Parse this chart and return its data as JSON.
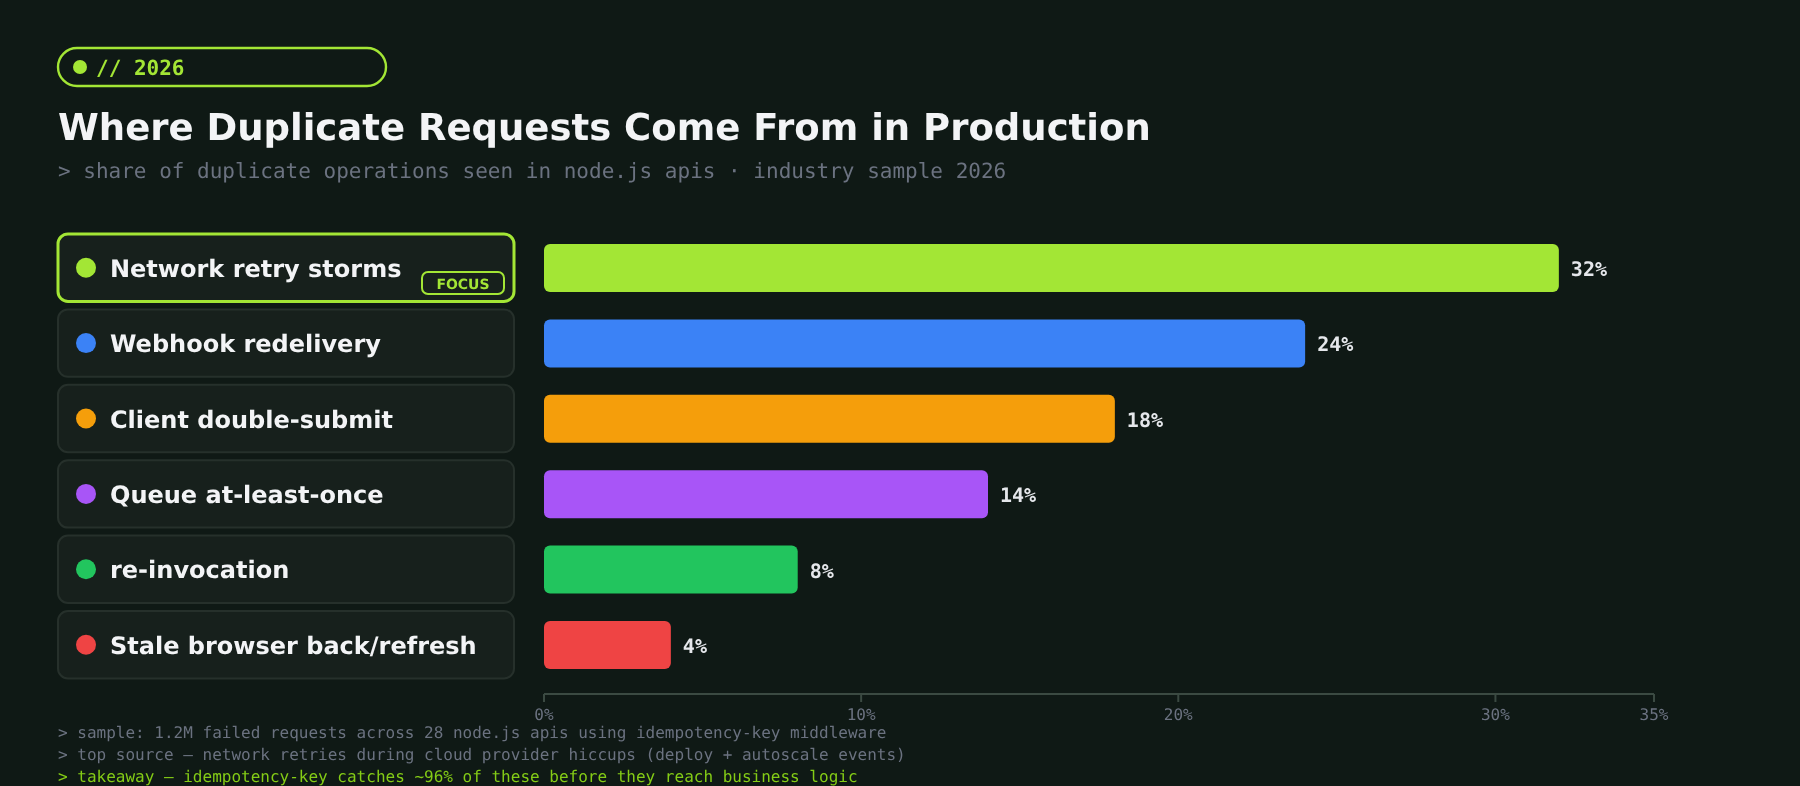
{
  "chart_data": {
    "type": "bar",
    "orientation": "horizontal",
    "title": "Where Duplicate Requests Come From in Production",
    "subtitle": "> share of duplicate operations seen in node.js apis · industry sample 2026",
    "categories": [
      "Network retry storms",
      "Webhook redelivery",
      "Client double-submit",
      "Queue at-least-once",
      "re-invocation",
      "Stale browser back/refresh"
    ],
    "values": [
      32,
      24,
      18,
      14,
      8,
      4
    ],
    "colors": [
      "#a3e635",
      "#3b82f6",
      "#f59e0b",
      "#a855f7",
      "#22c55e",
      "#ef4444"
    ],
    "value_labels": [
      "32%",
      "24%",
      "18%",
      "14%",
      "8%",
      "4%"
    ],
    "xlim": [
      0,
      35
    ],
    "xticks": [
      {
        "value": 0,
        "label": "0%"
      },
      {
        "value": 10,
        "label": "10%"
      },
      {
        "value": 20,
        "label": "20%"
      },
      {
        "value": 30,
        "label": "30%"
      },
      {
        "value": 35,
        "label": "35%"
      }
    ],
    "grid": false,
    "annotations": [
      "// 2026",
      "FOCUS",
      "> sample: 1.2M failed requests across 28 node.js apis using idempotency-key middleware",
      "> top source — network retries during cloud provider hiccups (deploy + autoscale events)",
      "> takeaway — idempotency-key catches ~96% of these before they reach business logic"
    ]
  }
}
